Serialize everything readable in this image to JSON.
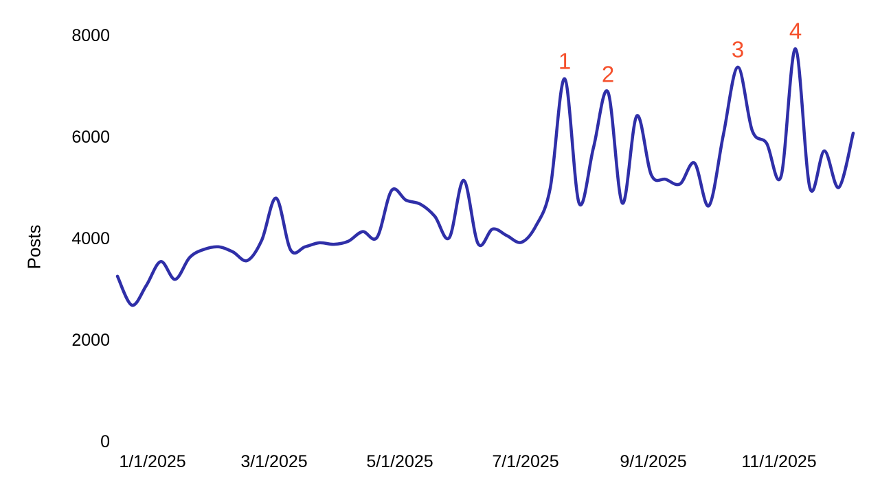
{
  "chart_data": {
    "type": "line",
    "title": "",
    "xlabel": "",
    "ylabel": "Posts",
    "grid": false,
    "legend": "none",
    "background": "#ffffff",
    "text_color": "#000000",
    "ylim": [
      0,
      8000
    ],
    "y_ticks": [
      {
        "value": 0,
        "label": "0"
      },
      {
        "value": 2000,
        "label": "2000"
      },
      {
        "value": 4000,
        "label": "4000"
      },
      {
        "value": 6000,
        "label": "6000"
      },
      {
        "value": 8000,
        "label": "8000"
      }
    ],
    "x_ticks": [
      {
        "date": "1/1/2025",
        "label": "1/1/2025"
      },
      {
        "date": "3/1/2025",
        "label": "3/1/2025"
      },
      {
        "date": "5/1/2025",
        "label": "5/1/2025"
      },
      {
        "date": "7/1/2025",
        "label": "7/1/2025"
      },
      {
        "date": "9/1/2025",
        "label": "9/1/2025"
      },
      {
        "date": "11/1/2025",
        "label": "11/1/2025"
      }
    ],
    "series": [
      {
        "name": "Posts",
        "color": "#2F2FA8",
        "points": [
          {
            "date": "12/15/2024",
            "value": 3260
          },
          {
            "date": "12/22/2024",
            "value": 2690
          },
          {
            "date": "12/29/2024",
            "value": 3080
          },
          {
            "date": "1/5/2025",
            "value": 3550
          },
          {
            "date": "1/12/2025",
            "value": 3200
          },
          {
            "date": "1/19/2025",
            "value": 3630
          },
          {
            "date": "1/26/2025",
            "value": 3790
          },
          {
            "date": "2/2/2025",
            "value": 3840
          },
          {
            "date": "2/9/2025",
            "value": 3740
          },
          {
            "date": "2/16/2025",
            "value": 3570
          },
          {
            "date": "2/23/2025",
            "value": 3970
          },
          {
            "date": "3/2/2025",
            "value": 4800
          },
          {
            "date": "3/9/2025",
            "value": 3780
          },
          {
            "date": "3/16/2025",
            "value": 3840
          },
          {
            "date": "3/23/2025",
            "value": 3920
          },
          {
            "date": "3/30/2025",
            "value": 3890
          },
          {
            "date": "4/6/2025",
            "value": 3950
          },
          {
            "date": "4/13/2025",
            "value": 4140
          },
          {
            "date": "4/20/2025",
            "value": 4030
          },
          {
            "date": "4/27/2025",
            "value": 4950
          },
          {
            "date": "5/4/2025",
            "value": 4760
          },
          {
            "date": "5/11/2025",
            "value": 4680
          },
          {
            "date": "5/18/2025",
            "value": 4440
          },
          {
            "date": "5/25/2025",
            "value": 4020
          },
          {
            "date": "6/1/2025",
            "value": 5150
          },
          {
            "date": "6/8/2025",
            "value": 3900
          },
          {
            "date": "6/15/2025",
            "value": 4190
          },
          {
            "date": "6/22/2025",
            "value": 4060
          },
          {
            "date": "6/29/2025",
            "value": 3930
          },
          {
            "date": "7/6/2025",
            "value": 4250
          },
          {
            "date": "7/13/2025",
            "value": 5000
          },
          {
            "date": "7/20/2025",
            "value": 7150
          },
          {
            "date": "7/27/2025",
            "value": 4700
          },
          {
            "date": "8/3/2025",
            "value": 5800
          },
          {
            "date": "8/10/2025",
            "value": 6890
          },
          {
            "date": "8/17/2025",
            "value": 4700
          },
          {
            "date": "8/24/2025",
            "value": 6420
          },
          {
            "date": "8/31/2025",
            "value": 5260
          },
          {
            "date": "9/7/2025",
            "value": 5170
          },
          {
            "date": "9/14/2025",
            "value": 5080
          },
          {
            "date": "9/21/2025",
            "value": 5490
          },
          {
            "date": "9/28/2025",
            "value": 4650
          },
          {
            "date": "10/5/2025",
            "value": 6050
          },
          {
            "date": "10/12/2025",
            "value": 7380
          },
          {
            "date": "10/19/2025",
            "value": 6130
          },
          {
            "date": "10/26/2025",
            "value": 5880
          },
          {
            "date": "11/2/2025",
            "value": 5230
          },
          {
            "date": "11/9/2025",
            "value": 7740
          },
          {
            "date": "11/16/2025",
            "value": 5000
          },
          {
            "date": "11/23/2025",
            "value": 5730
          },
          {
            "date": "11/30/2025",
            "value": 5010
          },
          {
            "date": "12/7/2025",
            "value": 6080
          }
        ]
      }
    ],
    "annotations": [
      {
        "label": "1",
        "date": "7/20/2025",
        "value": 7150
      },
      {
        "label": "2",
        "date": "8/10/2025",
        "value": 6890
      },
      {
        "label": "3",
        "date": "10/12/2025",
        "value": 7380
      },
      {
        "label": "4",
        "date": "11/9/2025",
        "value": 7740
      }
    ],
    "annotation_color": "#F5512D"
  }
}
